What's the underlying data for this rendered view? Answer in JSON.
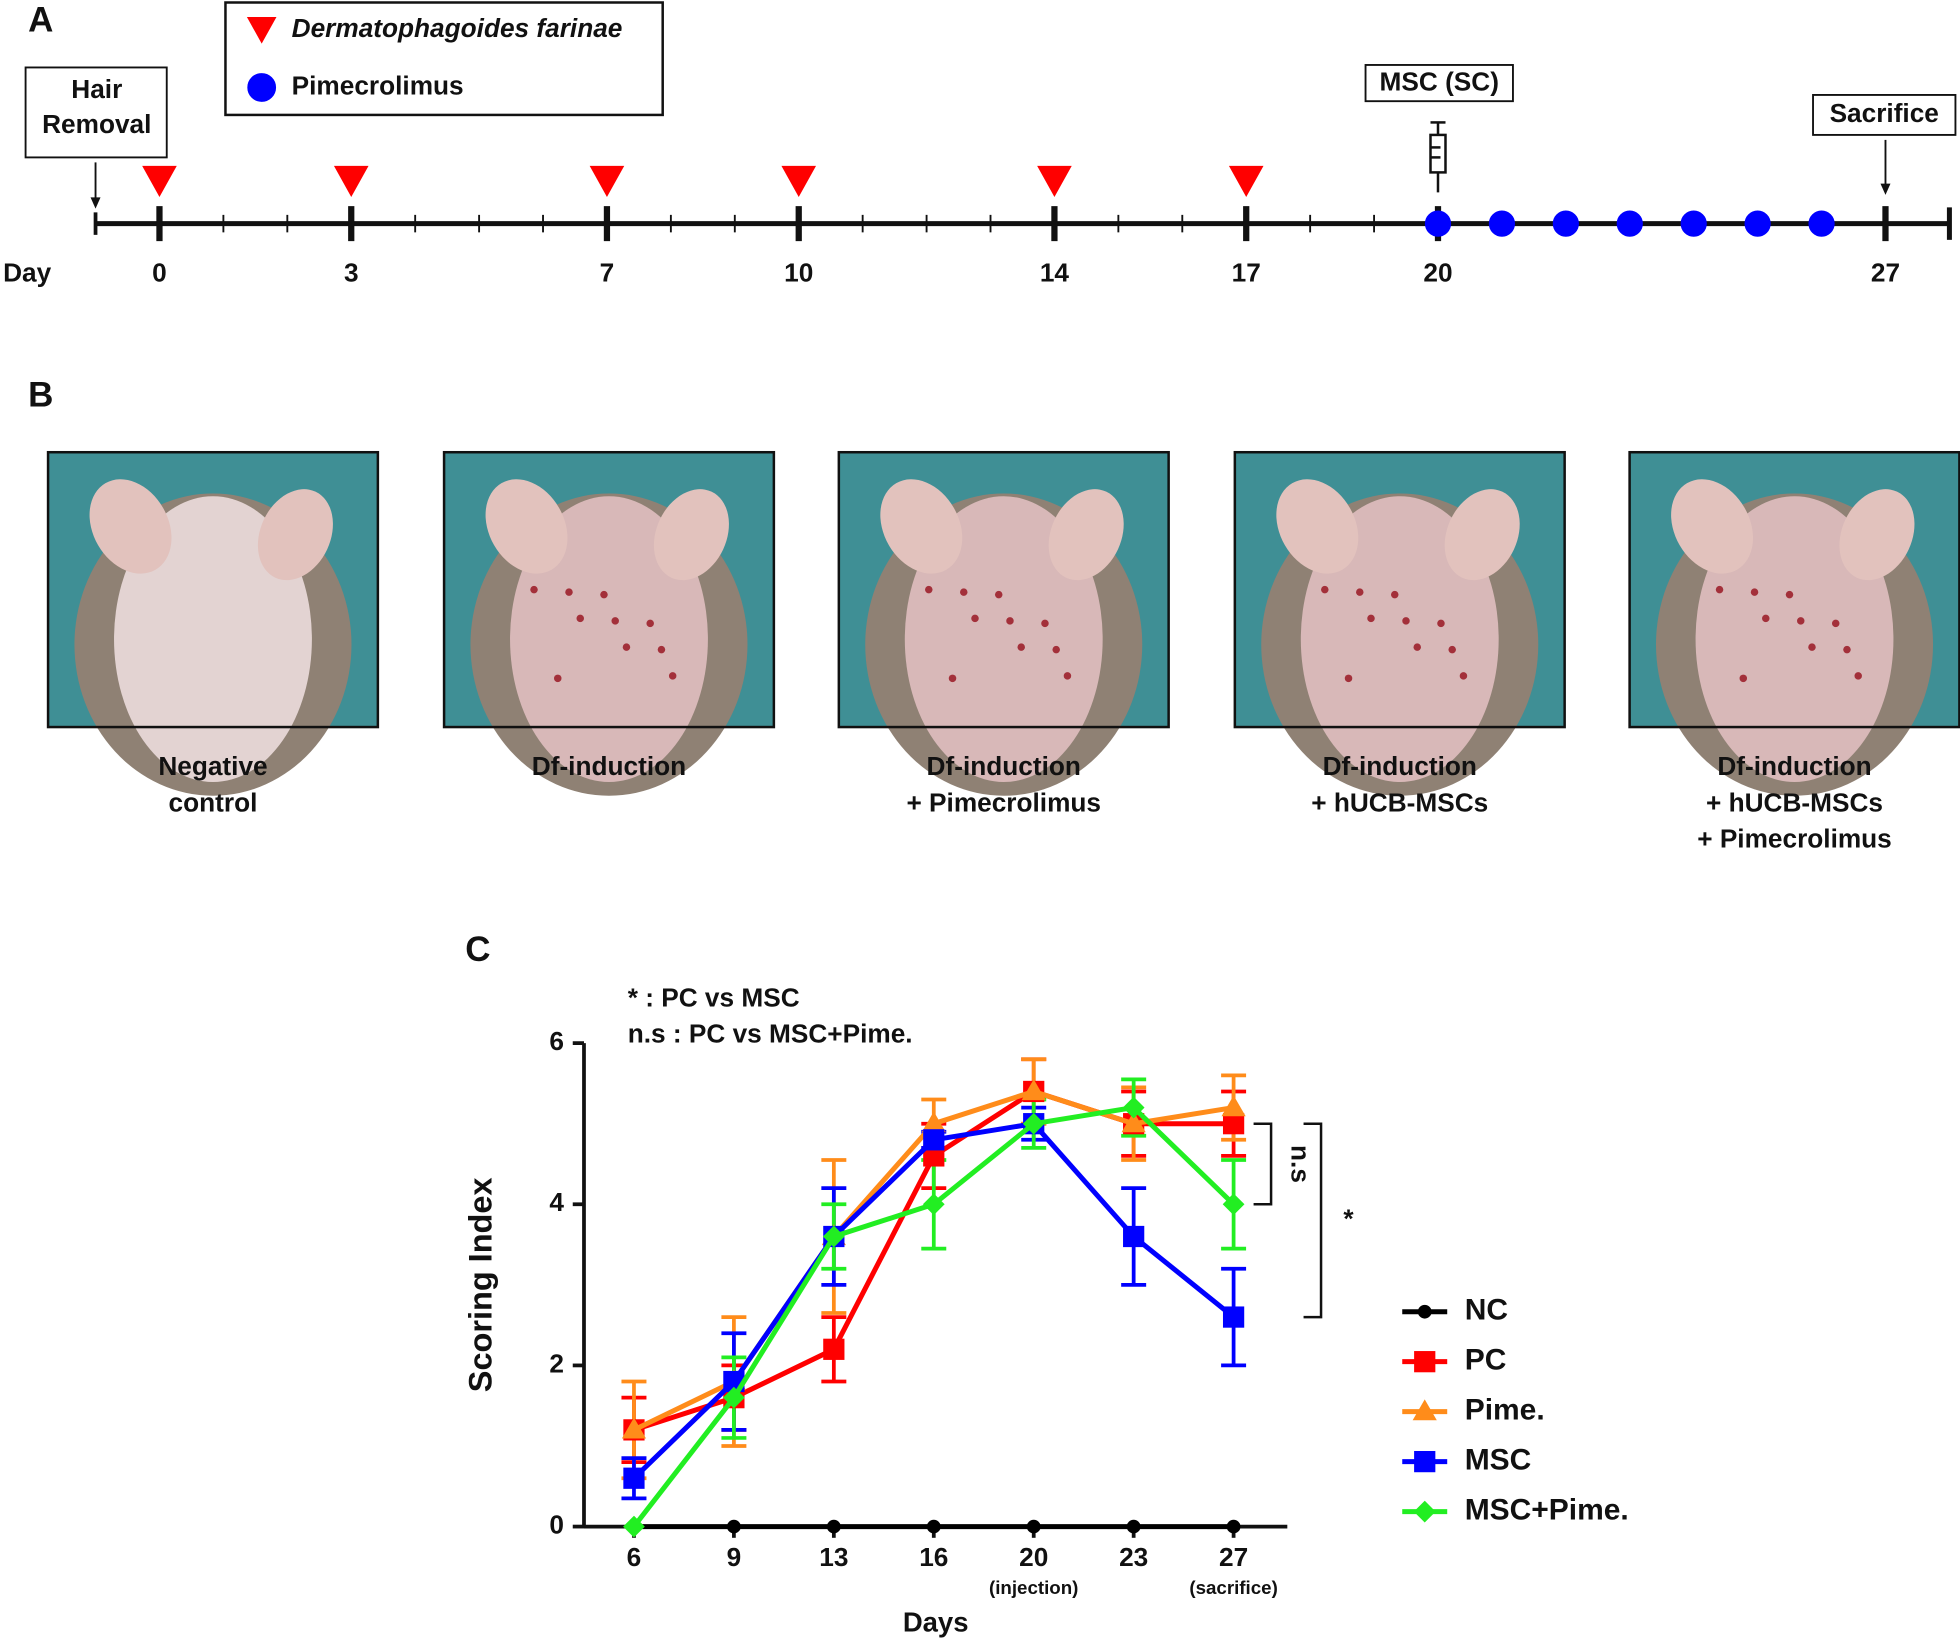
{
  "panel_labels": [
    "A",
    "B",
    "C"
  ],
  "timeline": {
    "label": "Day",
    "xlim": [
      -1,
      28
    ],
    "ticks": [
      0,
      3,
      7,
      10,
      14,
      17,
      20,
      27
    ],
    "df_days": [
      0,
      3,
      7,
      10,
      14,
      17
    ],
    "pime_days": [
      20,
      21,
      22,
      23,
      24,
      25,
      26
    ],
    "hair_removal_day": -1,
    "msc_day": 20,
    "sacrifice_day": 27,
    "hair_removal": [
      "Hair",
      "Removal"
    ],
    "msc_label": "MSC (SC)",
    "sacrifice_label": "Sacrifice",
    "legend": [
      {
        "name": "Dermatophagoides farinae",
        "color": "#ff0000",
        "marker": "triangle"
      },
      {
        "name": "Pimecrolimus",
        "color": "#0000ff",
        "marker": "circle"
      }
    ]
  },
  "photos": [
    {
      "caption": [
        "Negative",
        "control"
      ]
    },
    {
      "caption": [
        "Df-induction"
      ]
    },
    {
      "caption": [
        "Df-induction",
        "+ Pimecrolimus"
      ]
    },
    {
      "caption": [
        "Df-induction",
        "+ hUCB-MSCs"
      ]
    },
    {
      "caption": [
        "Df-induction",
        "+ hUCB-MSCs",
        "+ Pimecrolimus"
      ]
    }
  ],
  "chart_data": {
    "type": "line",
    "ylabel": "Scoring Index",
    "xlabel": "Days",
    "annotations": [
      "* : PC vs MSC",
      "n.s : PC vs MSC+Pime."
    ],
    "bracket_labels": [
      "n.s",
      "*"
    ],
    "categories": [
      "6",
      "9",
      "13",
      "16",
      "20",
      "23",
      "27"
    ],
    "category_notes": [
      null,
      null,
      null,
      null,
      "(injection)",
      null,
      "(sacrifice)"
    ],
    "ylim": [
      0,
      6
    ],
    "yticks": [
      0,
      2,
      4,
      6
    ],
    "legend": "right",
    "series": [
      {
        "name": "NC",
        "color": "#000000",
        "marker": "circle",
        "values": [
          0,
          0,
          0,
          0,
          0,
          0,
          0
        ]
      },
      {
        "name": "PC",
        "color": "#ff0000",
        "marker": "square",
        "values": [
          1.2,
          1.6,
          2.2,
          4.6,
          5.4,
          5.0,
          5.0
        ],
        "errors": [
          0.4,
          0.4,
          0.4,
          0.4,
          0.4,
          0.4,
          0.4
        ]
      },
      {
        "name": "Pime.",
        "color": "#ff8c1a",
        "marker": "triangle",
        "values": [
          1.2,
          1.8,
          3.6,
          5.0,
          5.4,
          5.0,
          5.2
        ],
        "errors": [
          0.6,
          0.8,
          0.95,
          0.3,
          0.4,
          0.45,
          0.4
        ]
      },
      {
        "name": "MSC",
        "color": "#0000ff",
        "marker": "square",
        "values": [
          0.6,
          1.8,
          3.6,
          4.8,
          5.0,
          3.6,
          2.6
        ],
        "errors": [
          0.25,
          0.6,
          0.6,
          0.1,
          0.2,
          0.6,
          0.6
        ]
      },
      {
        "name": "MSC+Pime.",
        "color": "#22ee22",
        "marker": "diamond",
        "values": [
          0,
          1.6,
          3.6,
          4.0,
          5.0,
          5.2,
          4.0
        ],
        "errors": [
          0,
          0.5,
          0.4,
          0.55,
          0.3,
          0.35,
          0.55
        ]
      }
    ]
  }
}
